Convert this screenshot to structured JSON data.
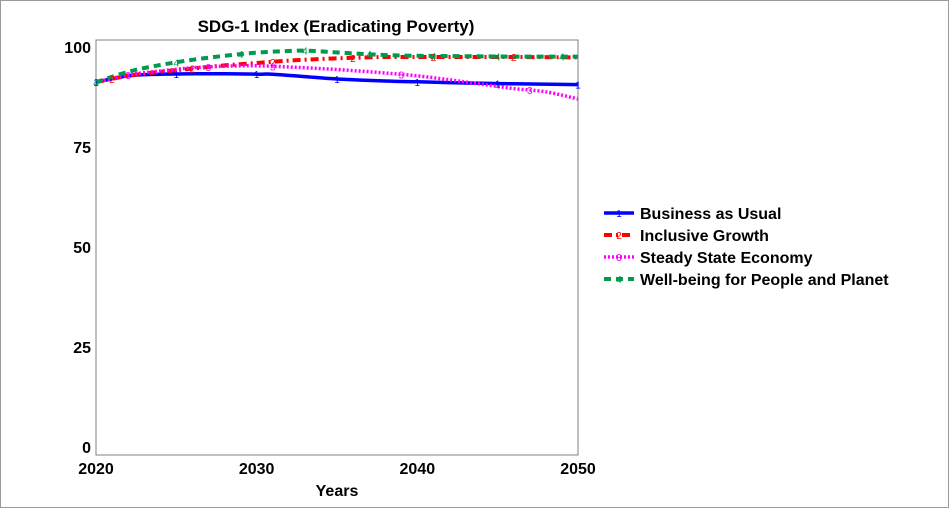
{
  "chart_data": {
    "type": "line",
    "title": "SDG-1 Index (Eradicating Poverty)",
    "xlabel": "Years",
    "ylabel": "",
    "xlim": [
      2020,
      2050
    ],
    "ylim": [
      0,
      100
    ],
    "xticks": [
      "2020",
      "2030",
      "2040",
      "2050"
    ],
    "yticks": [
      "0",
      "25",
      "50",
      "75",
      "100"
    ],
    "grid": false,
    "legend_position": "right",
    "series": [
      {
        "name": "Business as Usual",
        "marker": "1",
        "color": "#0000ff",
        "style": "solid",
        "x": [
          2020,
          2022,
          2024,
          2026,
          2028,
          2030,
          2031,
          2033,
          2035,
          2038,
          2040,
          2043,
          2046,
          2050
        ],
        "y": [
          91.2,
          92.8,
          93.2,
          93.3,
          93.3,
          93.2,
          93.2,
          92.6,
          92.0,
          91.5,
          91.3,
          91.0,
          90.8,
          90.6
        ]
      },
      {
        "name": "Inclusive Growth",
        "marker": "2",
        "color": "#ff0000",
        "style": "dashdot",
        "x": [
          2020,
          2022,
          2024,
          2026,
          2028,
          2030,
          2032,
          2034,
          2036,
          2038,
          2040,
          2043,
          2046,
          2050
        ],
        "y": [
          91.2,
          92.8,
          93.8,
          94.6,
          95.4,
          96.0,
          96.6,
          97.0,
          97.3,
          97.5,
          97.5,
          97.5,
          97.5,
          97.4
        ]
      },
      {
        "name": "Steady State Economy",
        "marker": "3",
        "color": "#ff00ff",
        "style": "dotted",
        "x": [
          2020,
          2022,
          2024,
          2026,
          2028,
          2030,
          2032,
          2034,
          2036,
          2038,
          2040,
          2042,
          2044,
          2046,
          2048,
          2050
        ],
        "y": [
          91.2,
          93.0,
          94.0,
          94.8,
          95.2,
          95.3,
          95.0,
          94.6,
          94.1,
          93.5,
          92.8,
          91.8,
          90.7,
          89.6,
          88.8,
          87.0
        ]
      },
      {
        "name": "Well-being for People and Planet",
        "marker": "4",
        "color": "#00994d",
        "style": "dashed",
        "x": [
          2020,
          2022,
          2024,
          2026,
          2028,
          2030,
          2032,
          2033,
          2034,
          2036,
          2038,
          2040,
          2043,
          2046,
          2050
        ],
        "y": [
          91.2,
          93.8,
          95.5,
          96.8,
          97.8,
          98.6,
          99.0,
          99.1,
          98.9,
          98.4,
          98.0,
          97.8,
          97.7,
          97.6,
          97.6
        ]
      }
    ]
  }
}
